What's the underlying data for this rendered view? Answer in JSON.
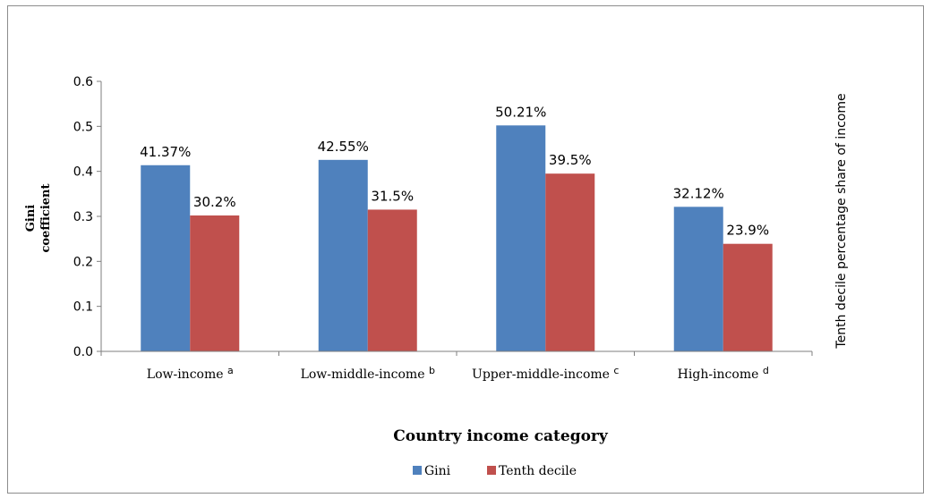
{
  "chart_data": {
    "type": "bar",
    "categories": [
      "Low-income",
      "Low-middle-income",
      "Upper-middle-income",
      "High-income"
    ],
    "category_notes": [
      "a",
      "b",
      "c",
      "d"
    ],
    "series": [
      {
        "name": "Gini",
        "values": [
          0.4137,
          0.4255,
          0.5021,
          0.3212
        ],
        "labels": [
          "41.37%",
          "42.55%",
          "50.21%",
          "32.12%"
        ],
        "color": "#4f81bd"
      },
      {
        "name": "Tenth decile",
        "values": [
          0.302,
          0.315,
          0.395,
          0.239
        ],
        "labels": [
          "30.2%",
          "31.5%",
          "39.5%",
          "23.9%"
        ],
        "color": "#c0504d"
      }
    ],
    "ylim": [
      0,
      0.6
    ],
    "yticks": [
      "0.0",
      "0.1",
      "0.2",
      "0.3",
      "0.4",
      "0.5",
      "0.6"
    ],
    "ylabel": [
      "Gini",
      "coefficient"
    ],
    "y2label": "Tenth decile percentage share of income",
    "xlabel": "Country income category",
    "legend_position": "bottom",
    "grid": false
  }
}
